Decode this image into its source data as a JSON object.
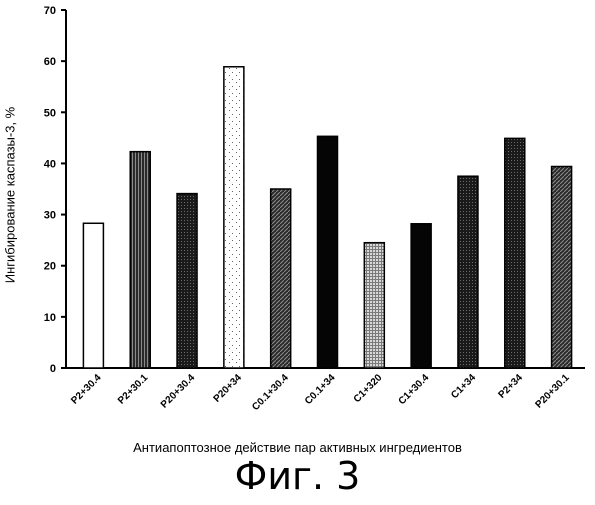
{
  "chart_data": {
    "type": "bar",
    "categories": [
      "P2+30.4",
      "P2+30.1",
      "P20+30.4",
      "P20+34",
      "C0.1+30.4",
      "C0.1+34",
      "C1+320",
      "C1+30.4",
      "C1+34",
      "P2+34",
      "P20+30.1"
    ],
    "values": [
      28.3,
      42.3,
      34.1,
      58.9,
      35.0,
      45.3,
      24.5,
      28.2,
      37.5,
      44.9,
      39.4
    ],
    "ylabel": "Ингибирование каспазы-3, %",
    "xlabel": "Антиапоптозное действие пар активных ингредиентов",
    "ylim": [
      0,
      70
    ],
    "yticks": [
      0,
      10,
      20,
      30,
      40,
      50,
      60,
      70
    ],
    "grid": false,
    "bar_patterns": [
      "white",
      "vlines",
      "dark-dots",
      "light-dots",
      "hatch",
      "black",
      "grid",
      "black",
      "dark-dots",
      "dark-dots",
      "hatch"
    ]
  },
  "figure_caption": "Фиг. 3"
}
